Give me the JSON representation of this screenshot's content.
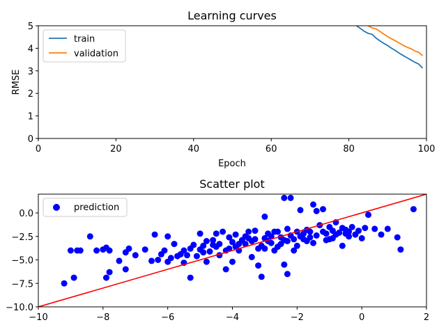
{
  "chart_data": [
    {
      "type": "line",
      "title": "Learning curves",
      "xlabel": "Epoch",
      "ylabel": "RMSE",
      "xlim": [
        0,
        100
      ],
      "ylim": [
        0,
        5
      ],
      "x_ticks": [
        "0",
        "20",
        "40",
        "60",
        "80",
        "100"
      ],
      "y_ticks": [
        "0",
        "1",
        "2",
        "3",
        "4",
        "5"
      ],
      "grid": false,
      "legend_position": "top-left",
      "series": [
        {
          "name": "train",
          "color": "#1f77b4",
          "x": [
            82,
            84,
            85,
            86,
            87,
            88,
            89,
            90,
            91,
            92,
            93,
            94,
            95,
            96,
            97,
            98,
            99
          ],
          "y": [
            5.0,
            4.75,
            4.66,
            4.62,
            4.45,
            4.33,
            4.22,
            4.12,
            4.0,
            3.9,
            3.78,
            3.68,
            3.58,
            3.48,
            3.38,
            3.3,
            3.12
          ]
        },
        {
          "name": "validation",
          "color": "#ff7f0e",
          "x": [
            85,
            86,
            87,
            88,
            89,
            90,
            91,
            92,
            93,
            94,
            95,
            96,
            97,
            98,
            99
          ],
          "y": [
            5.0,
            4.9,
            4.86,
            4.75,
            4.63,
            4.52,
            4.42,
            4.33,
            4.23,
            4.13,
            4.05,
            3.98,
            3.88,
            3.82,
            3.67
          ]
        }
      ]
    },
    {
      "type": "scatter",
      "title": "Scatter plot",
      "xlabel": "",
      "ylabel": "",
      "xlim": [
        -10,
        2
      ],
      "ylim": [
        -10,
        2
      ],
      "x_ticks": [
        "−10",
        "−8",
        "−6",
        "−4",
        "−2",
        "0",
        "2"
      ],
      "y_ticks": [
        "−10.0",
        "−7.5",
        "−5.0",
        "−2.5",
        "0.0"
      ],
      "grid": false,
      "legend_position": "top-left",
      "series": [
        {
          "name": "prediction",
          "color": "#0000ff",
          "points": [
            [
              -9.2,
              -7.5
            ],
            [
              -9.0,
              -4.0
            ],
            [
              -8.9,
              -6.9
            ],
            [
              -8.8,
              -4.0
            ],
            [
              -8.7,
              -4.0
            ],
            [
              -8.4,
              -2.5
            ],
            [
              -8.2,
              -4.0
            ],
            [
              -8.0,
              -3.9
            ],
            [
              -7.9,
              -3.7
            ],
            [
              -7.8,
              -4.0
            ],
            [
              -7.9,
              -6.9
            ],
            [
              -7.8,
              -6.3
            ],
            [
              -7.5,
              -5.1
            ],
            [
              -7.3,
              -4.2
            ],
            [
              -7.2,
              -3.8
            ],
            [
              -7.0,
              -4.5
            ],
            [
              -7.3,
              -6.0
            ],
            [
              -6.7,
              -3.9
            ],
            [
              -6.5,
              -5.1
            ],
            [
              -6.4,
              -2.3
            ],
            [
              -6.3,
              -5.0
            ],
            [
              -6.2,
              -4.4
            ],
            [
              -6.1,
              -4.0
            ],
            [
              -6.0,
              -2.5
            ],
            [
              -5.9,
              -4.8
            ],
            [
              -5.8,
              -3.3
            ],
            [
              -5.6,
              -4.4
            ],
            [
              -5.5,
              -5.3
            ],
            [
              -5.4,
              -4.5
            ],
            [
              -5.3,
              -3.8
            ],
            [
              -5.2,
              -3.4
            ],
            [
              -5.3,
              -6.9
            ],
            [
              -5.1,
              -4.6
            ],
            [
              -5.0,
              -2.2
            ],
            [
              -4.9,
              -3.5
            ],
            [
              -4.8,
              -5.2
            ],
            [
              -4.7,
              -4.1
            ],
            [
              -4.6,
              -2.9
            ],
            [
              -4.5,
              -3.6
            ],
            [
              -4.4,
              -4.5
            ],
            [
              -4.3,
              -2.0
            ],
            [
              -4.2,
              -6.0
            ],
            [
              -4.1,
              -3.8
            ],
            [
              -4.0,
              -5.2
            ],
            [
              -3.9,
              -2.3
            ],
            [
              -3.8,
              -4.0
            ],
            [
              -3.7,
              -2.9
            ],
            [
              -3.6,
              -3.3
            ],
            [
              -3.5,
              -2.7
            ],
            [
              -3.4,
              -4.7
            ],
            [
              -3.3,
              -1.9
            ],
            [
              -3.2,
              -5.6
            ],
            [
              -3.1,
              -3.5
            ],
            [
              -3.0,
              -0.4
            ],
            [
              -2.9,
              -3.0
            ],
            [
              -2.8,
              -2.5
            ],
            [
              -2.7,
              -4.0
            ],
            [
              -2.6,
              -2.0
            ],
            [
              -2.5,
              -3.3
            ],
            [
              -2.4,
              -5.5
            ],
            [
              -2.3,
              -1.7
            ],
            [
              -2.2,
              1.6
            ],
            [
              -2.1,
              -2.8
            ],
            [
              -2.0,
              -3.5
            ],
            [
              -1.9,
              0.3
            ],
            [
              -1.8,
              -2.2
            ],
            [
              -1.7,
              -3.0
            ],
            [
              -1.6,
              -2.6
            ],
            [
              -1.5,
              0.9
            ],
            [
              -1.4,
              0.2
            ],
            [
              -1.3,
              -1.3
            ],
            [
              -1.2,
              0.4
            ],
            [
              -1.1,
              -2.2
            ],
            [
              -1.0,
              -2.8
            ],
            [
              -0.9,
              -1.9
            ],
            [
              -0.8,
              -1.0
            ],
            [
              -0.7,
              -2.1
            ],
            [
              -0.6,
              -3.5
            ],
            [
              -0.5,
              -1.8
            ],
            [
              -0.4,
              -2.5
            ],
            [
              -0.3,
              -1.5
            ],
            [
              -0.2,
              -2.3
            ],
            [
              -0.1,
              -1.9
            ],
            [
              0.0,
              -2.7
            ],
            [
              0.2,
              -0.2
            ],
            [
              0.4,
              -1.7
            ],
            [
              0.6,
              -2.3
            ],
            [
              0.8,
              -1.7
            ],
            [
              1.1,
              -2.6
            ],
            [
              1.2,
              -3.9
            ],
            [
              1.6,
              0.4
            ],
            [
              -3.1,
              -6.8
            ],
            [
              -2.3,
              -6.5
            ],
            [
              -2.4,
              1.6
            ],
            [
              -4.5,
              -2.2
            ],
            [
              -3.5,
              -2.0
            ],
            [
              -4.0,
              -3.1
            ],
            [
              -3.0,
              -3.8
            ],
            [
              -2.5,
              -2.6
            ],
            [
              -2.0,
              -2.0
            ],
            [
              -1.5,
              -3.2
            ],
            [
              -1.0,
              -1.5
            ],
            [
              -0.5,
              -2.2
            ],
            [
              -6.0,
              -5.2
            ],
            [
              -5.5,
              -4.0
            ],
            [
              -5.0,
              -3.9
            ],
            [
              -4.8,
              -3.0
            ],
            [
              -4.2,
              -4.0
            ],
            [
              -3.8,
              -3.3
            ],
            [
              -3.3,
              -2.8
            ],
            [
              -2.8,
              -3.2
            ],
            [
              -2.2,
              -2.4
            ],
            [
              -1.8,
              -2.8
            ],
            [
              -1.2,
              -2.0
            ],
            [
              -0.8,
              -2.3
            ],
            [
              -3.6,
              -2.5
            ],
            [
              -3.2,
              -3.8
            ],
            [
              -2.6,
              -3.6
            ],
            [
              -2.1,
              -4.0
            ],
            [
              -1.6,
              -2.0
            ],
            [
              -4.6,
              -3.4
            ],
            [
              -4.1,
              -2.6
            ],
            [
              -3.4,
              -3.0
            ],
            [
              -2.9,
              -2.2
            ],
            [
              -2.4,
              -2.9
            ],
            [
              -1.9,
              -2.5
            ],
            [
              -1.4,
              -2.4
            ],
            [
              -0.9,
              -2.7
            ],
            [
              -0.4,
              -2.0
            ],
            [
              0.1,
              -1.6
            ],
            [
              -5.7,
              -4.6
            ],
            [
              -4.9,
              -4.2
            ],
            [
              -4.4,
              -3.3
            ],
            [
              -3.9,
              -3.6
            ],
            [
              -3.0,
              -2.7
            ],
            [
              -2.7,
              -2.0
            ],
            [
              -2.3,
              -3.0
            ],
            [
              -1.7,
              -1.8
            ],
            [
              -1.1,
              -2.9
            ],
            [
              -0.6,
              -1.6
            ]
          ]
        },
        {
          "name": "",
          "kind": "line",
          "color": "#ff0000",
          "x": [
            -10,
            2
          ],
          "y": [
            -10,
            2
          ]
        }
      ]
    }
  ]
}
